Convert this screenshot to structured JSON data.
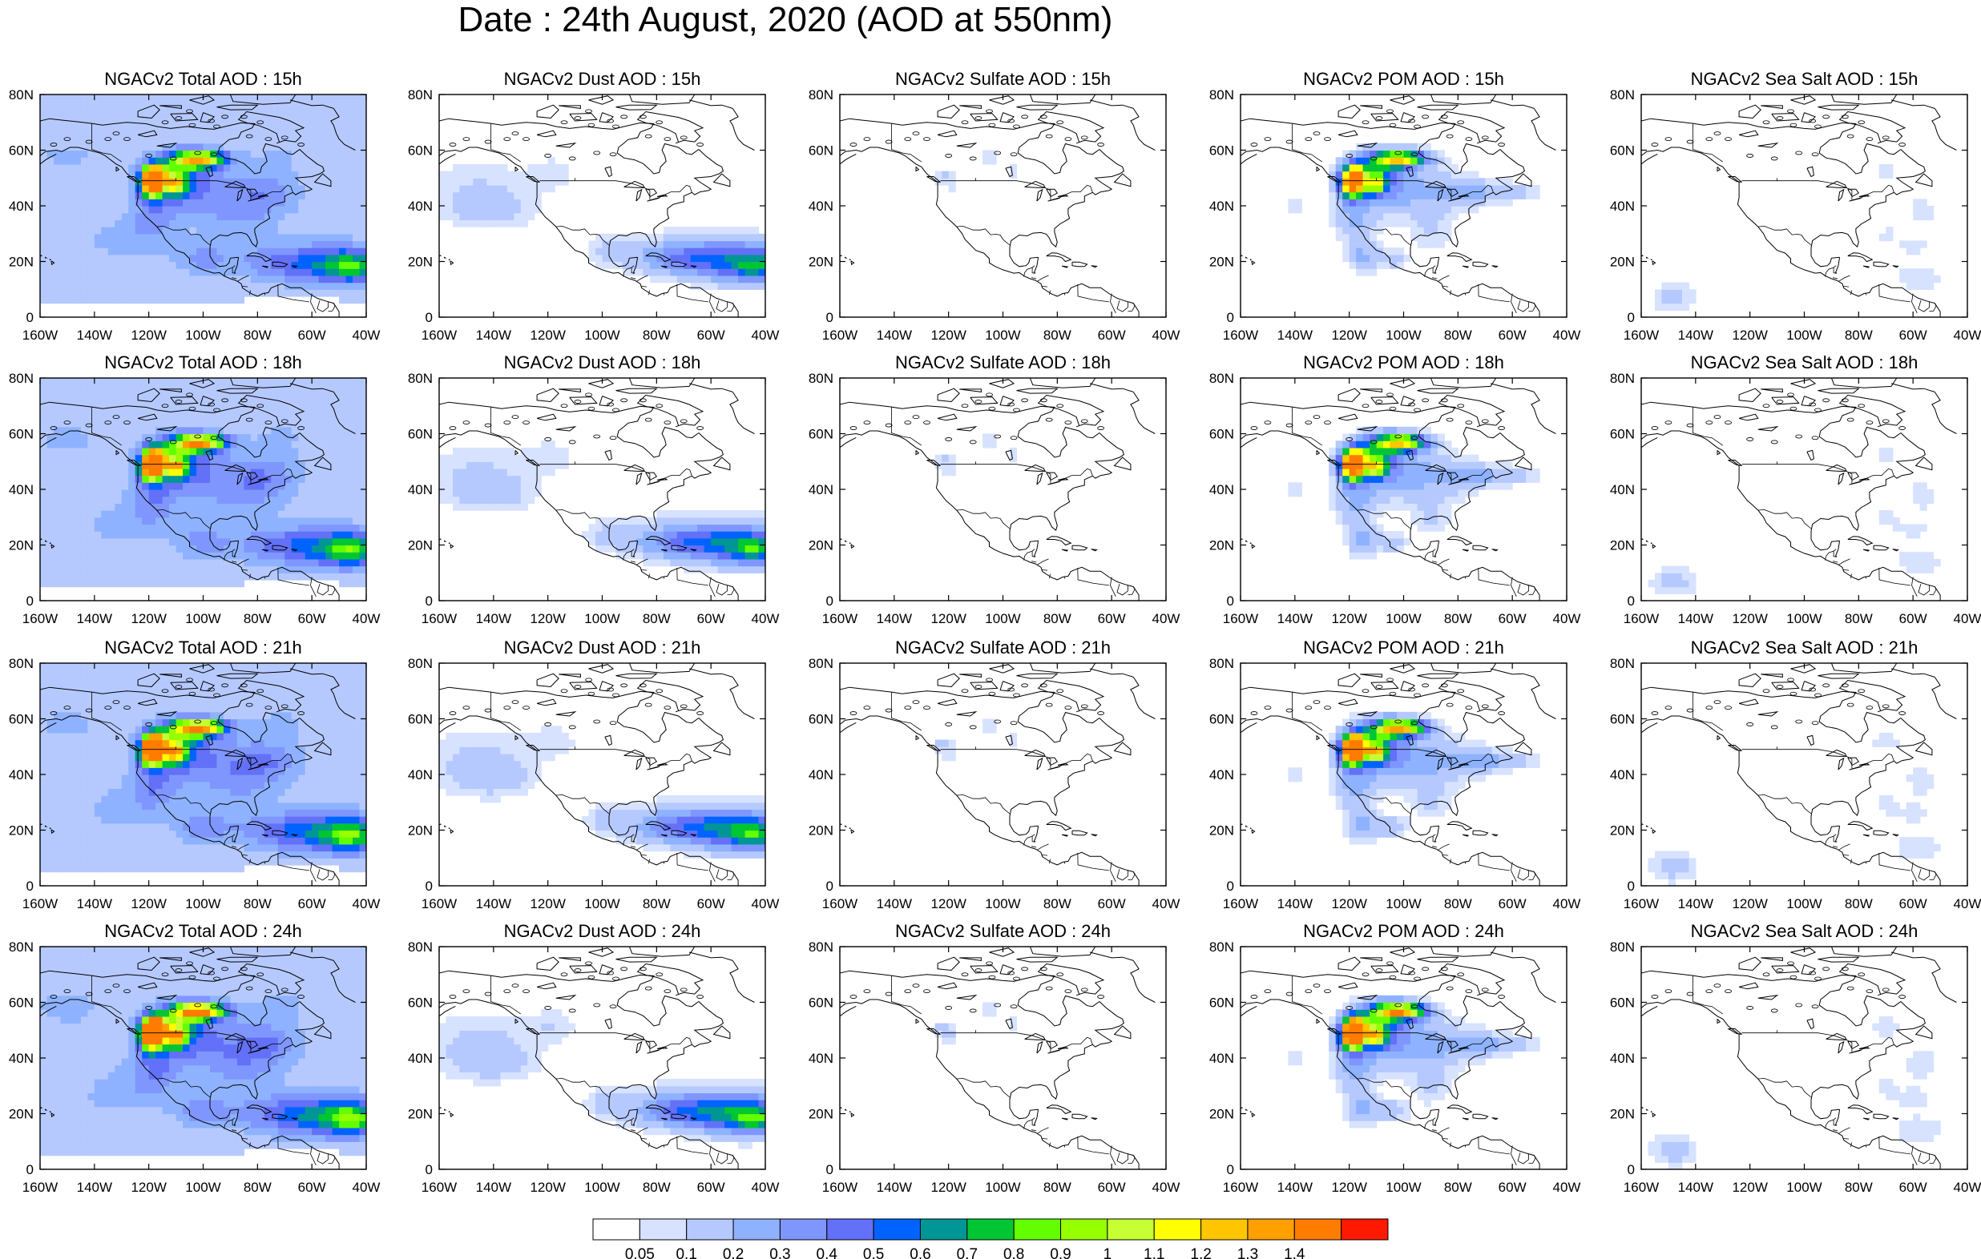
{
  "title": "Date : 24th August, 2020 (AOD at 550nm)",
  "panel_titles": [
    [
      "NGACv2 Total AOD : 15h",
      "NGACv2 Dust AOD : 15h",
      "NGACv2 Sulfate AOD : 15h",
      "NGACv2 POM AOD : 15h",
      "NGACv2 Sea Salt AOD : 15h"
    ],
    [
      "NGACv2 Total AOD : 18h",
      "NGACv2 Dust AOD : 18h",
      "NGACv2 Sulfate AOD : 18h",
      "NGACv2 POM AOD : 18h",
      "NGACv2 Sea Salt AOD : 18h"
    ],
    [
      "NGACv2 Total AOD : 21h",
      "NGACv2 Dust AOD : 21h",
      "NGACv2 Sulfate AOD : 21h",
      "NGACv2 POM AOD : 21h",
      "NGACv2 Sea Salt AOD : 21h"
    ],
    [
      "NGACv2 Total AOD : 24h",
      "NGACv2 Dust AOD : 24h",
      "NGACv2 Sulfate AOD : 24h",
      "NGACv2 POM AOD : 24h",
      "NGACv2 Sea Salt  AOD : 24h"
    ]
  ],
  "map": {
    "lon_range": [
      -160,
      -40
    ],
    "lat_range": [
      0,
      80
    ],
    "x_ticks": [
      "160W",
      "140W",
      "120W",
      "100W",
      "80W",
      "60W",
      "40W"
    ],
    "y_ticks": [
      "0",
      "20N",
      "40N",
      "60N",
      "80N"
    ]
  },
  "colorbar": {
    "colors": [
      "#ffffff",
      "#d6e2ff",
      "#b5c9ff",
      "#8eb2ff",
      "#7f96ff",
      "#6370f8",
      "#0063ff",
      "#009696",
      "#00c633",
      "#63ff00",
      "#96ff00",
      "#c6ff33",
      "#ffff00",
      "#ffc600",
      "#ffa000",
      "#ff7c00",
      "#ff1900"
    ],
    "labels": [
      "0.05",
      "0.1",
      "0.2",
      "0.3",
      "0.4",
      "0.5",
      "0.6",
      "0.7",
      "0.8",
      "0.9",
      "1",
      "1.1",
      "1.2",
      "1.3",
      "1.4"
    ]
  }
}
